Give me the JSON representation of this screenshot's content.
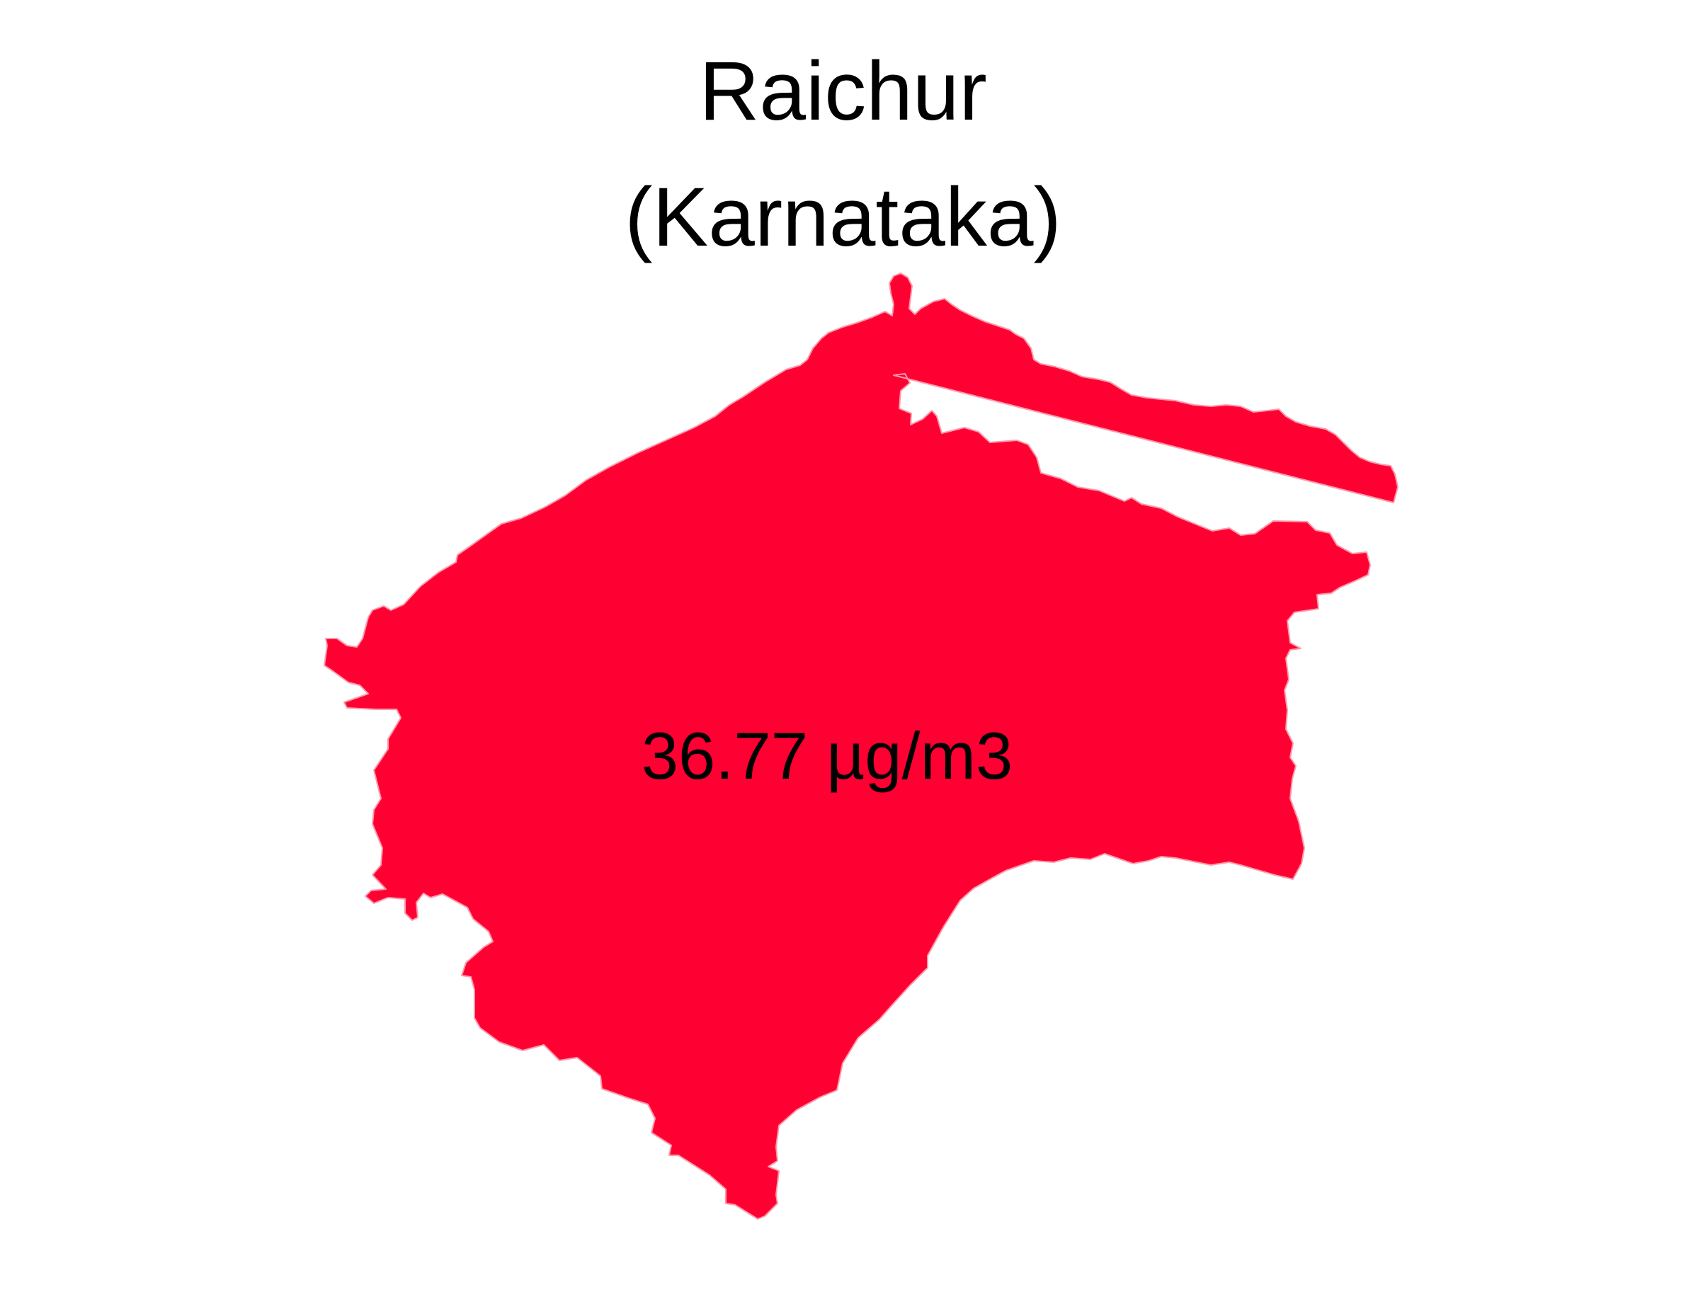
{
  "title": {
    "line1": "Raichur",
    "line2": "(Karnataka)"
  },
  "district": {
    "name": "Raichur",
    "state": "Karnataka",
    "value_label": "36.77 µg/m3",
    "fill_color": "#ff0033",
    "border_color": "#ff99aa"
  }
}
